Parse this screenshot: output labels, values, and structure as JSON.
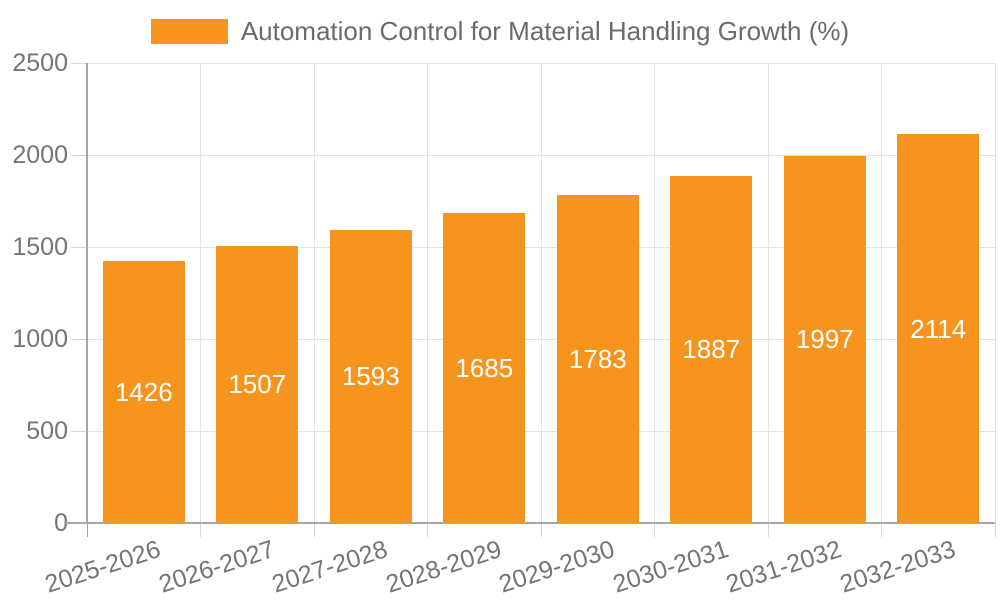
{
  "legend": {
    "label": "Automation Control for Material Handling Growth (%)"
  },
  "chart_data": {
    "type": "bar",
    "title": "Automation Control for Material Handling Growth (%)",
    "categories": [
      "2025-2026",
      "2026-2027",
      "2027-2028",
      "2028-2029",
      "2029-2030",
      "2030-2031",
      "2031-2032",
      "2032-2033"
    ],
    "values": [
      1426,
      1507,
      1593,
      1685,
      1783,
      1887,
      1997,
      2114
    ],
    "xlabel": "",
    "ylabel": "",
    "ylim": [
      0,
      2500
    ],
    "yticks": [
      0,
      500,
      1000,
      1500,
      2000,
      2500
    ],
    "grid": "on",
    "legend_position": "top-center",
    "value_labels": "inside-center",
    "colors": {
      "bar": "#F7941E",
      "value_label": "#FFFFFF",
      "axis_text": "#757575",
      "legend_text": "#6B6B6B",
      "grid": "#E3E3E3",
      "axis_line": "#A6A6A6",
      "tick": "#D6D6D6",
      "background": "#FFFFFF"
    }
  }
}
